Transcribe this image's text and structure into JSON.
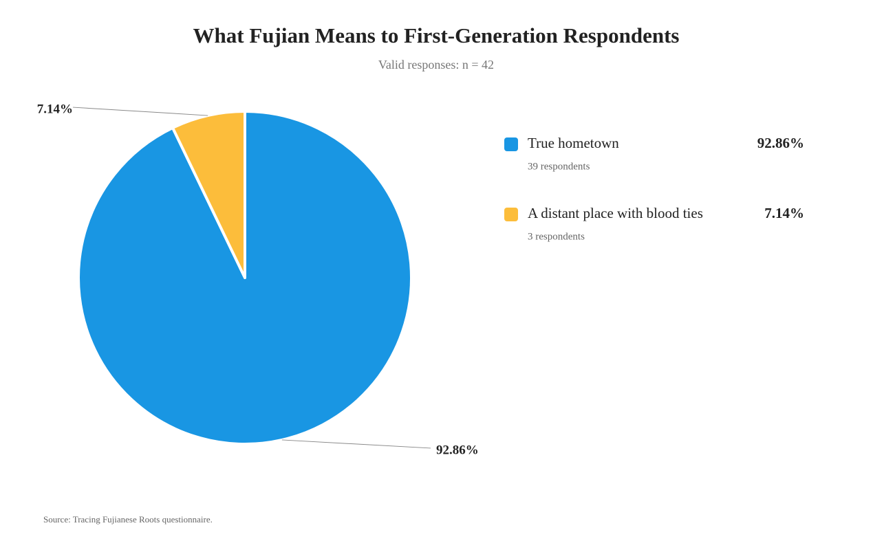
{
  "chart_data": {
    "type": "pie",
    "title": "What Fujian Means to First-Generation Respondents",
    "subtitle": "Valid responses: n = 42",
    "source": "Source: Tracing Fujianese Roots questionnaire.",
    "categories": [
      "True hometown",
      "A distant place with blood ties"
    ],
    "values": [
      92.86,
      7.14
    ],
    "value_labels": [
      "92.86%",
      "7.14%"
    ],
    "legend_notes": [
      "39 respondents",
      "3 respondents"
    ],
    "colors": [
      "#1996e3",
      "#fcbd3b"
    ]
  }
}
